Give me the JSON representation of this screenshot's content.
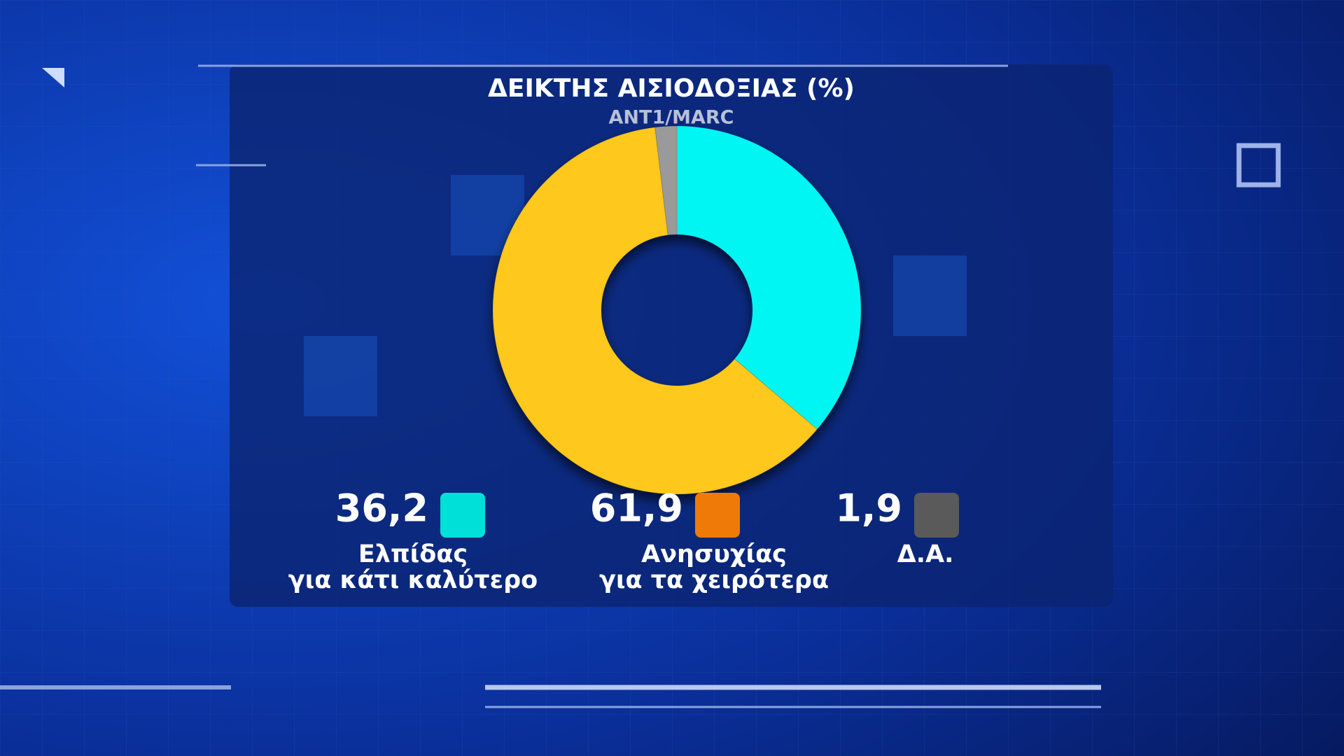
{
  "chart_data": {
    "type": "donut",
    "title": "ΔΕΙΚΤΗΣ ΑΙΣΙΟΔΟΞΙΑΣ (%)",
    "subtitle": "ANT1/MARC",
    "categories": [
      "Ελπίδας\nγια κάτι καλύτερο",
      "Ανησυχίας\nγια τα χειρότερα",
      "Δ.Α."
    ],
    "values": [
      36.2,
      61.9,
      1.9
    ],
    "value_labels": [
      "36,2",
      "61,9",
      "1,9"
    ],
    "colors": [
      "#00f6f2",
      "#ffc81a",
      "#9a9a9a"
    ],
    "legend_colors": [
      "#00e0d8",
      "#f07a08",
      "#5a5a5a"
    ]
  }
}
